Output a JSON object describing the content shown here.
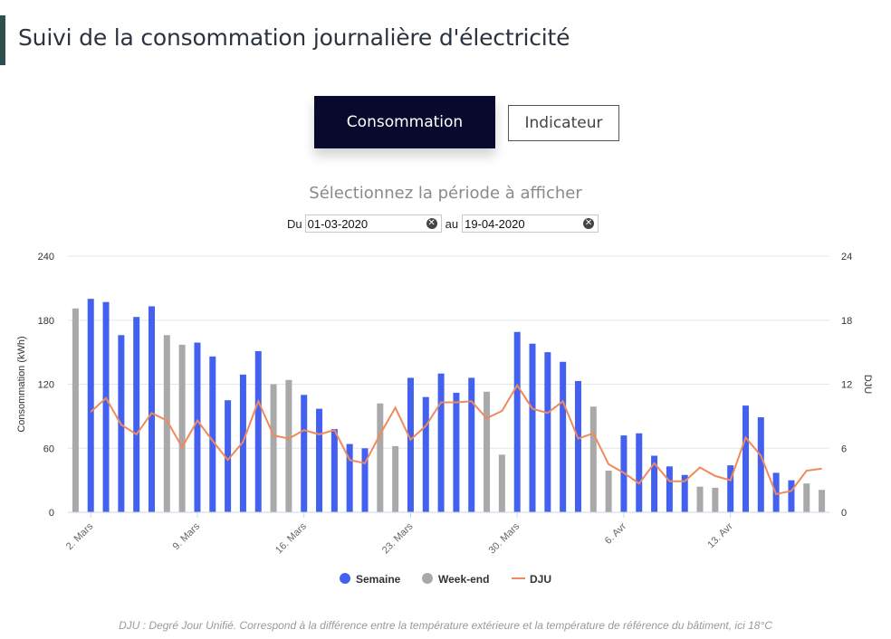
{
  "header": {
    "title": "Suivi de la consommation journalière d'électricité"
  },
  "tabs": {
    "consommation": "Consommation",
    "indicateur": "Indicateur"
  },
  "period": {
    "title": "Sélectionnez la période à afficher",
    "from_label": "Du",
    "from_value": "01-03-2020",
    "to_label": "au",
    "to_value": "19-04-2020"
  },
  "chart_data": {
    "type": "bar",
    "title": "",
    "ylabel": "Consommation (kWh)",
    "y2label": "DJU",
    "ylim": [
      0,
      240
    ],
    "y2lim": [
      0,
      24
    ],
    "yticks": [
      0,
      60,
      120,
      180,
      240
    ],
    "y2ticks": [
      0,
      6,
      12,
      18,
      24
    ],
    "xtick_labels": [
      {
        "label": "2. Mars",
        "day": 1
      },
      {
        "label": "9. Mars",
        "day": 8
      },
      {
        "label": "16. Mars",
        "day": 15
      },
      {
        "label": "23. Mars",
        "day": 22
      },
      {
        "label": "30. Mars",
        "day": 29
      },
      {
        "label": "6. Avr",
        "day": 36
      },
      {
        "label": "13. Avr",
        "day": 43
      }
    ],
    "dates": [
      "01-03",
      "02-03",
      "03-03",
      "04-03",
      "05-03",
      "06-03",
      "07-03",
      "08-03",
      "09-03",
      "10-03",
      "11-03",
      "12-03",
      "13-03",
      "14-03",
      "15-03",
      "16-03",
      "17-03",
      "18-03",
      "19-03",
      "20-03",
      "21-03",
      "22-03",
      "23-03",
      "24-03",
      "25-03",
      "26-03",
      "27-03",
      "28-03",
      "29-03",
      "30-03",
      "31-03",
      "01-04",
      "02-04",
      "03-04",
      "04-04",
      "05-04",
      "06-04",
      "07-04",
      "08-04",
      "09-04",
      "10-04",
      "11-04",
      "12-04",
      "13-04",
      "14-04",
      "15-04",
      "16-04",
      "17-04",
      "18-04",
      "19-04"
    ],
    "series": [
      {
        "name": "Semaine",
        "color": "#4361ee",
        "values": [
          null,
          200,
          197,
          166,
          183,
          193,
          null,
          null,
          159,
          146,
          105,
          129,
          151,
          null,
          null,
          110,
          97,
          78,
          64,
          60,
          null,
          null,
          126,
          108,
          130,
          112,
          126,
          null,
          null,
          169,
          158,
          150,
          141,
          123,
          null,
          null,
          72,
          74,
          53,
          43,
          35,
          null,
          null,
          44,
          100,
          89,
          37,
          30,
          null,
          null
        ]
      },
      {
        "name": "Week-end",
        "color": "#a9a9a9",
        "values": [
          191,
          null,
          null,
          null,
          null,
          null,
          166,
          157,
          null,
          null,
          null,
          null,
          null,
          120,
          124,
          null,
          null,
          null,
          null,
          null,
          102,
          62,
          null,
          null,
          null,
          null,
          null,
          113,
          54,
          null,
          null,
          null,
          null,
          null,
          99,
          39,
          null,
          null,
          null,
          null,
          null,
          24,
          23,
          null,
          null,
          null,
          null,
          null,
          27,
          21
        ]
      },
      {
        "name": "DJU",
        "color": "#f08a5d",
        "type": "line",
        "values": [
          null,
          9.4,
          10.7,
          8.2,
          7.3,
          9.3,
          8.6,
          6.1,
          8.6,
          6.7,
          4.9,
          6.6,
          10.4,
          7.2,
          6.9,
          7.7,
          7.3,
          7.7,
          4.9,
          4.6,
          7.3,
          9.8,
          6.8,
          8.1,
          10.3,
          10.3,
          10.4,
          8.8,
          9.5,
          11.9,
          9.7,
          9.3,
          10.4,
          6.9,
          7.4,
          4.5,
          3.7,
          2.7,
          4.6,
          2.9,
          2.9,
          4.2,
          3.4,
          3.0,
          7.0,
          5.3,
          1.7,
          2.0,
          3.9,
          4.1
        ]
      }
    ],
    "legend": {
      "position": "bottom",
      "items": [
        "Semaine",
        "Week-end",
        "DJU"
      ]
    },
    "grid": true
  },
  "footnote": "DJU : Degré Jour Unifié. Correspond à la différence entre la température extérieure et la température de référence du bâtiment, ici 18°C"
}
